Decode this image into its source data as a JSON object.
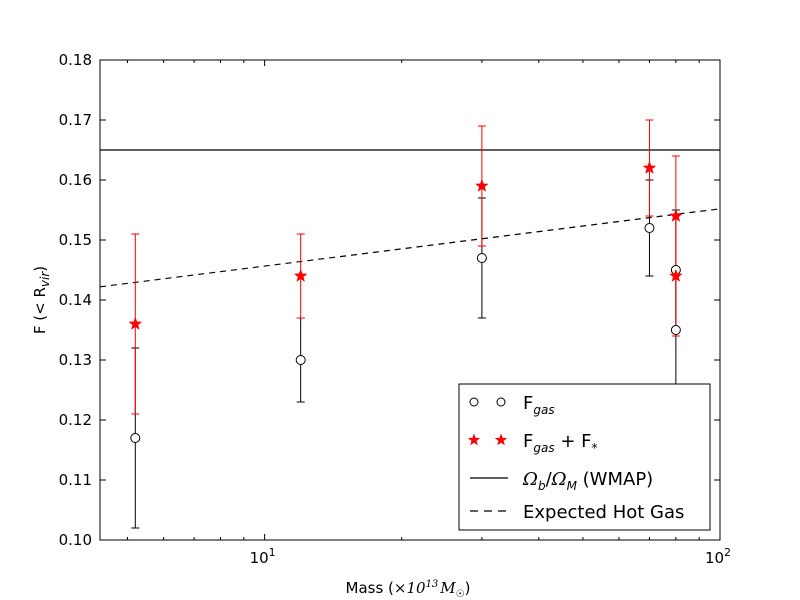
{
  "chart_data": {
    "type": "scatter",
    "title": "",
    "xlabel": {
      "prefix": "Mass (",
      "math": "×10",
      "exp": "13",
      "unit": "M",
      "unit_sub": "☉",
      "suffix": ")"
    },
    "ylabel": {
      "prefix": "F (< R",
      "sub": "vir",
      "suffix": ")"
    },
    "xscale": "log",
    "xlim": [
      4.35,
      100
    ],
    "ylim": [
      0.1,
      0.18
    ],
    "yticks": [
      "0.10",
      "0.11",
      "0.12",
      "0.13",
      "0.14",
      "0.15",
      "0.16",
      "0.17",
      "0.18"
    ],
    "xticks": [
      {
        "value": 10,
        "base": "10",
        "exp": "1"
      },
      {
        "value": 100,
        "base": "10",
        "exp": "2"
      }
    ],
    "grid": false,
    "legend_position": "lower-right",
    "series": [
      {
        "name": "F_gas",
        "label_main": "F",
        "label_sub": "gas",
        "marker": "open-circle",
        "color": "#000000",
        "points": [
          {
            "x": 5.2,
            "y": 0.117,
            "err": 0.015
          },
          {
            "x": 12.0,
            "y": 0.13,
            "err": 0.007
          },
          {
            "x": 30.0,
            "y": 0.147,
            "err": 0.01
          },
          {
            "x": 70.0,
            "y": 0.152,
            "err": 0.008
          },
          {
            "x": 80.0,
            "y": 0.145,
            "err": 0.01
          },
          {
            "x": 80.0,
            "y": 0.135,
            "err": 0.01
          }
        ]
      },
      {
        "name": "F_gas + F_*",
        "label_main": "F",
        "label_sub": "gas",
        "label_mid": " + F",
        "label_sub2": "*",
        "marker": "star",
        "color": "#ff0000",
        "points": [
          {
            "x": 5.2,
            "y": 0.136,
            "err": 0.015
          },
          {
            "x": 12.0,
            "y": 0.144,
            "err": 0.007
          },
          {
            "x": 30.0,
            "y": 0.159,
            "err": 0.01
          },
          {
            "x": 70.0,
            "y": 0.162,
            "err": 0.008
          },
          {
            "x": 80.0,
            "y": 0.154,
            "err": 0.01
          },
          {
            "x": 80.0,
            "y": 0.144,
            "err": 0.01
          }
        ]
      },
      {
        "name": "Ω_b/Ω_M (WMAP)",
        "label_math1": "Ω",
        "label_sub1": "b",
        "label_slash": "/",
        "label_math2": "Ω",
        "label_sub2": "M",
        "label_tail": " (WMAP)",
        "style": "solid",
        "color": "#000000",
        "line": [
          {
            "x": 4.35,
            "y": 0.165
          },
          {
            "x": 100,
            "y": 0.165
          }
        ]
      },
      {
        "name": "Expected Hot Gas",
        "label": "Expected Hot Gas",
        "style": "dashed",
        "color": "#000000",
        "line": [
          {
            "x": 4.35,
            "y": 0.1422
          },
          {
            "x": 100,
            "y": 0.1552
          }
        ]
      }
    ]
  }
}
